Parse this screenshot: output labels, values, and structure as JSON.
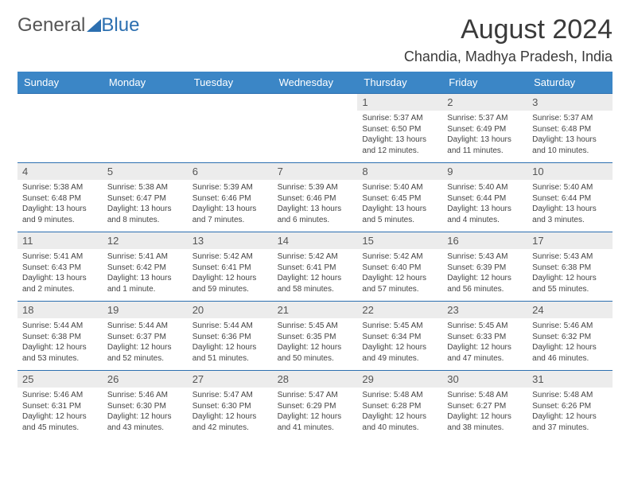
{
  "logo": {
    "part1": "General",
    "part2": "Blue"
  },
  "title": {
    "month": "August 2024",
    "location": "Chandia, Madhya Pradesh, India"
  },
  "colors": {
    "header_bg": "#3b86c6",
    "header_text": "#ffffff",
    "rule": "#2c6fb0",
    "daynum_bg": "#ececec",
    "body_text": "#444444",
    "background": "#ffffff"
  },
  "dayNames": [
    "Sunday",
    "Monday",
    "Tuesday",
    "Wednesday",
    "Thursday",
    "Friday",
    "Saturday"
  ],
  "weeks": [
    [
      null,
      null,
      null,
      null,
      {
        "n": "1",
        "sunrise": "5:37 AM",
        "sunset": "6:50 PM",
        "daylight": "13 hours and 12 minutes."
      },
      {
        "n": "2",
        "sunrise": "5:37 AM",
        "sunset": "6:49 PM",
        "daylight": "13 hours and 11 minutes."
      },
      {
        "n": "3",
        "sunrise": "5:37 AM",
        "sunset": "6:48 PM",
        "daylight": "13 hours and 10 minutes."
      }
    ],
    [
      {
        "n": "4",
        "sunrise": "5:38 AM",
        "sunset": "6:48 PM",
        "daylight": "13 hours and 9 minutes."
      },
      {
        "n": "5",
        "sunrise": "5:38 AM",
        "sunset": "6:47 PM",
        "daylight": "13 hours and 8 minutes."
      },
      {
        "n": "6",
        "sunrise": "5:39 AM",
        "sunset": "6:46 PM",
        "daylight": "13 hours and 7 minutes."
      },
      {
        "n": "7",
        "sunrise": "5:39 AM",
        "sunset": "6:46 PM",
        "daylight": "13 hours and 6 minutes."
      },
      {
        "n": "8",
        "sunrise": "5:40 AM",
        "sunset": "6:45 PM",
        "daylight": "13 hours and 5 minutes."
      },
      {
        "n": "9",
        "sunrise": "5:40 AM",
        "sunset": "6:44 PM",
        "daylight": "13 hours and 4 minutes."
      },
      {
        "n": "10",
        "sunrise": "5:40 AM",
        "sunset": "6:44 PM",
        "daylight": "13 hours and 3 minutes."
      }
    ],
    [
      {
        "n": "11",
        "sunrise": "5:41 AM",
        "sunset": "6:43 PM",
        "daylight": "13 hours and 2 minutes."
      },
      {
        "n": "12",
        "sunrise": "5:41 AM",
        "sunset": "6:42 PM",
        "daylight": "13 hours and 1 minute."
      },
      {
        "n": "13",
        "sunrise": "5:42 AM",
        "sunset": "6:41 PM",
        "daylight": "12 hours and 59 minutes."
      },
      {
        "n": "14",
        "sunrise": "5:42 AM",
        "sunset": "6:41 PM",
        "daylight": "12 hours and 58 minutes."
      },
      {
        "n": "15",
        "sunrise": "5:42 AM",
        "sunset": "6:40 PM",
        "daylight": "12 hours and 57 minutes."
      },
      {
        "n": "16",
        "sunrise": "5:43 AM",
        "sunset": "6:39 PM",
        "daylight": "12 hours and 56 minutes."
      },
      {
        "n": "17",
        "sunrise": "5:43 AM",
        "sunset": "6:38 PM",
        "daylight": "12 hours and 55 minutes."
      }
    ],
    [
      {
        "n": "18",
        "sunrise": "5:44 AM",
        "sunset": "6:38 PM",
        "daylight": "12 hours and 53 minutes."
      },
      {
        "n": "19",
        "sunrise": "5:44 AM",
        "sunset": "6:37 PM",
        "daylight": "12 hours and 52 minutes."
      },
      {
        "n": "20",
        "sunrise": "5:44 AM",
        "sunset": "6:36 PM",
        "daylight": "12 hours and 51 minutes."
      },
      {
        "n": "21",
        "sunrise": "5:45 AM",
        "sunset": "6:35 PM",
        "daylight": "12 hours and 50 minutes."
      },
      {
        "n": "22",
        "sunrise": "5:45 AM",
        "sunset": "6:34 PM",
        "daylight": "12 hours and 49 minutes."
      },
      {
        "n": "23",
        "sunrise": "5:45 AM",
        "sunset": "6:33 PM",
        "daylight": "12 hours and 47 minutes."
      },
      {
        "n": "24",
        "sunrise": "5:46 AM",
        "sunset": "6:32 PM",
        "daylight": "12 hours and 46 minutes."
      }
    ],
    [
      {
        "n": "25",
        "sunrise": "5:46 AM",
        "sunset": "6:31 PM",
        "daylight": "12 hours and 45 minutes."
      },
      {
        "n": "26",
        "sunrise": "5:46 AM",
        "sunset": "6:30 PM",
        "daylight": "12 hours and 43 minutes."
      },
      {
        "n": "27",
        "sunrise": "5:47 AM",
        "sunset": "6:30 PM",
        "daylight": "12 hours and 42 minutes."
      },
      {
        "n": "28",
        "sunrise": "5:47 AM",
        "sunset": "6:29 PM",
        "daylight": "12 hours and 41 minutes."
      },
      {
        "n": "29",
        "sunrise": "5:48 AM",
        "sunset": "6:28 PM",
        "daylight": "12 hours and 40 minutes."
      },
      {
        "n": "30",
        "sunrise": "5:48 AM",
        "sunset": "6:27 PM",
        "daylight": "12 hours and 38 minutes."
      },
      {
        "n": "31",
        "sunrise": "5:48 AM",
        "sunset": "6:26 PM",
        "daylight": "12 hours and 37 minutes."
      }
    ]
  ],
  "labels": {
    "sunrise": "Sunrise:",
    "sunset": "Sunset:",
    "daylight": "Daylight:"
  }
}
